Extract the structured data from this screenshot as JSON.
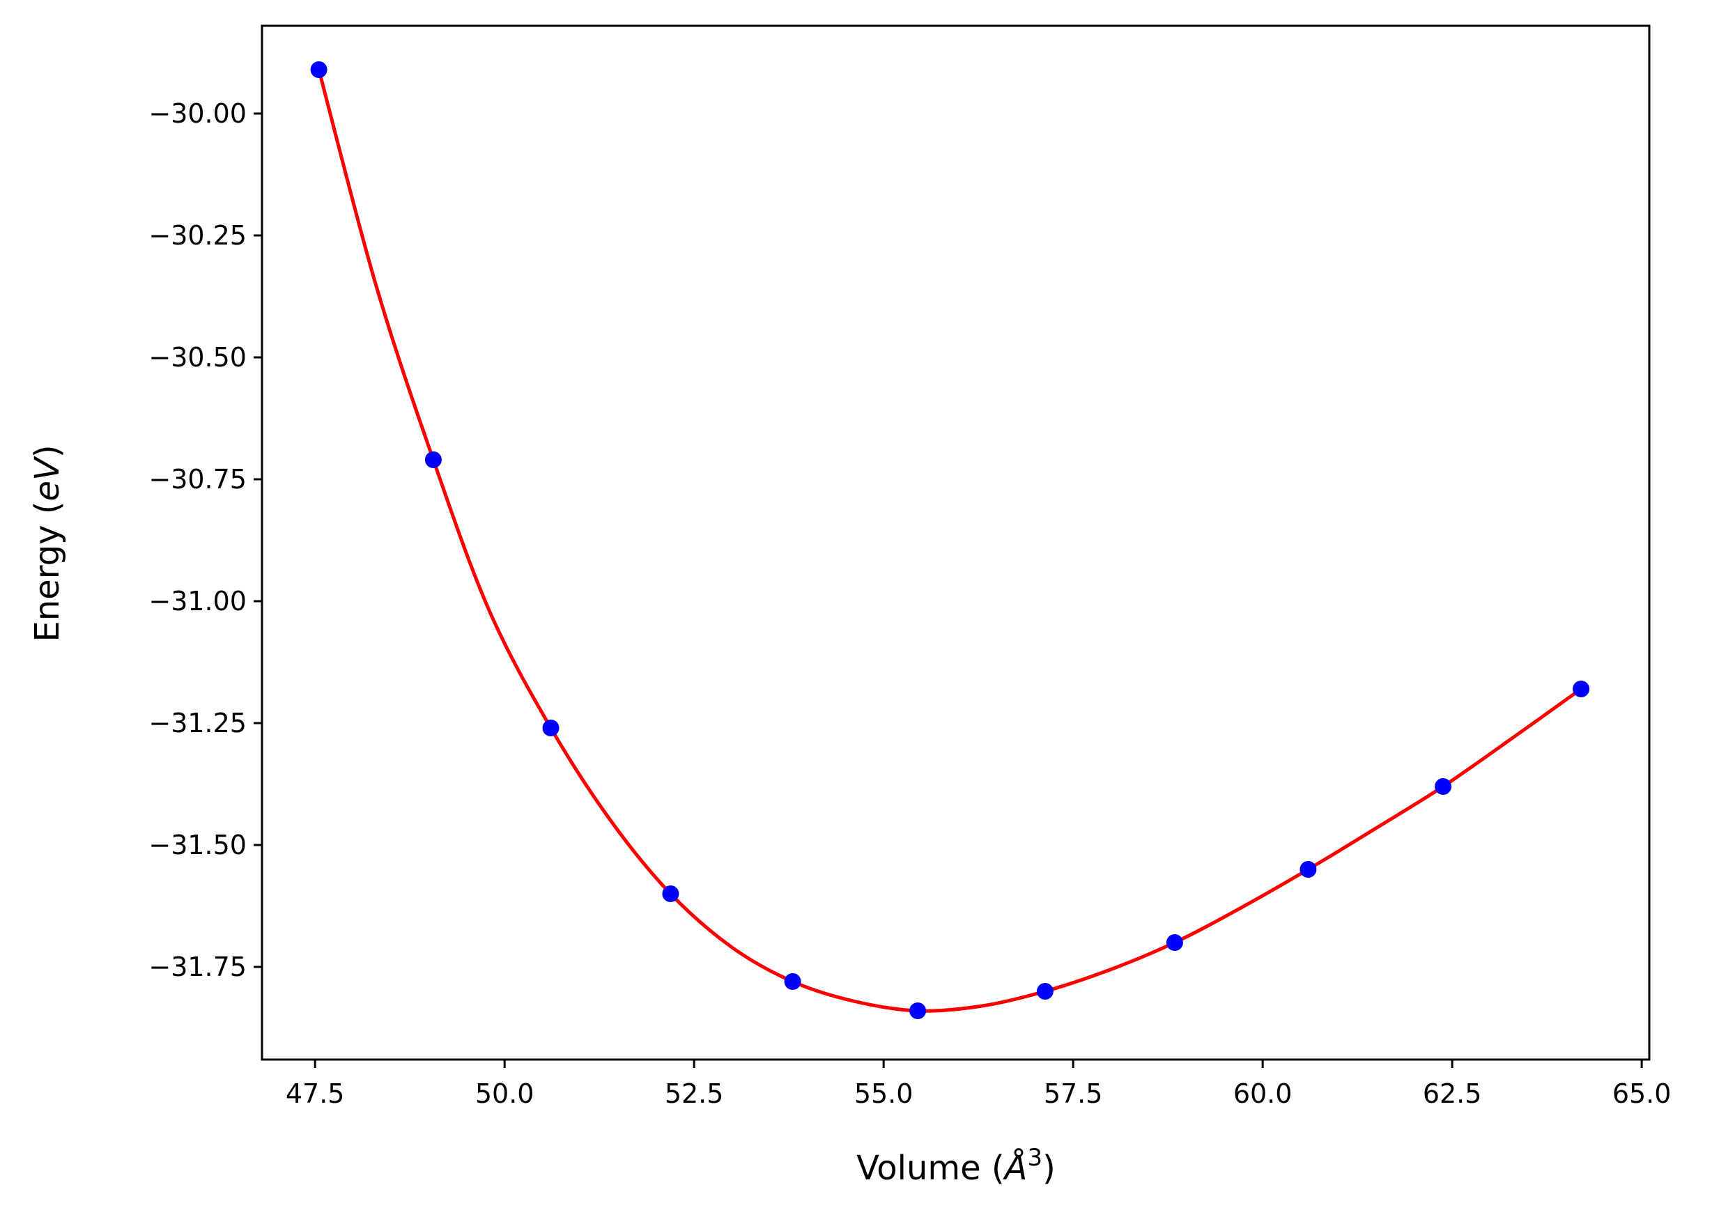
{
  "chart_data": {
    "type": "scatter",
    "xlabel": {
      "pre": "Volume (",
      "italic": "Å",
      "sup": "3",
      "post": ")"
    },
    "ylabel": {
      "pre": "Energy (",
      "italic": "eV",
      "post": ")"
    },
    "xlim": [
      46.8,
      65.1
    ],
    "ylim": [
      -31.94,
      -29.82
    ],
    "xticks": [
      47.5,
      50.0,
      52.5,
      55.0,
      57.5,
      60.0,
      62.5,
      65.0
    ],
    "xtick_labels": [
      "47.5",
      "50.0",
      "52.5",
      "55.0",
      "57.5",
      "60.0",
      "62.5",
      "65.0"
    ],
    "yticks": [
      -30.0,
      -30.25,
      -30.5,
      -30.75,
      -31.0,
      -31.25,
      -31.5,
      -31.75
    ],
    "ytick_labels": [
      "−30.00",
      "−30.25",
      "−30.50",
      "−30.75",
      "−31.00",
      "−31.25",
      "−31.50",
      "−31.75"
    ],
    "grid": false,
    "series": [
      {
        "kind": "points",
        "color": "#0000ff",
        "x": [
          47.55,
          49.06,
          50.61,
          52.19,
          53.8,
          55.45,
          57.13,
          58.84,
          60.6,
          62.38,
          64.2
        ],
        "y": [
          -29.91,
          -30.71,
          -31.26,
          -31.6,
          -31.78,
          -31.84,
          -31.8,
          -31.7,
          -31.55,
          -31.38,
          -31.18
        ]
      },
      {
        "kind": "fit-curve",
        "color": "#ff0000",
        "x": [
          47.55,
          48.3,
          49.06,
          49.8,
          50.61,
          51.4,
          52.19,
          53.0,
          53.8,
          54.6,
          55.45,
          56.3,
          57.13,
          58.0,
          58.84,
          59.7,
          60.6,
          61.5,
          62.38,
          63.3,
          64.2
        ],
        "y": [
          -29.91,
          -30.35,
          -30.71,
          -31.02,
          -31.26,
          -31.45,
          -31.6,
          -31.71,
          -31.78,
          -31.82,
          -31.84,
          -31.83,
          -31.8,
          -31.755,
          -31.7,
          -31.63,
          -31.55,
          -31.465,
          -31.38,
          -31.28,
          -31.18
        ]
      }
    ]
  }
}
